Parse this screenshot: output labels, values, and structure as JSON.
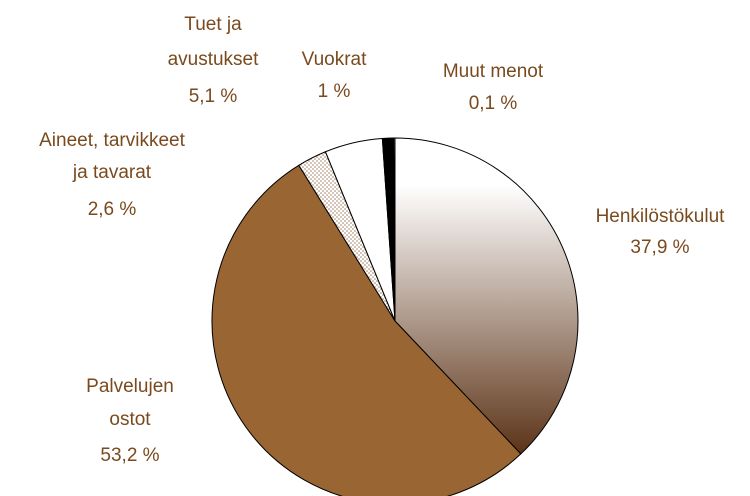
{
  "chart_data": {
    "type": "pie",
    "categories": [
      [
        "Henkilöstökulut"
      ],
      [
        "Palvelujen",
        "ostot"
      ],
      [
        "Aineet, tarvikkeet",
        "ja tavarat"
      ],
      [
        "Tuet ja",
        "avustukset"
      ],
      [
        "Vuokrat"
      ],
      [
        "Muut menot"
      ]
    ],
    "values": [
      37.9,
      53.2,
      2.6,
      5.1,
      1,
      0.1
    ],
    "value_labels": [
      "37,9 %",
      "53,2 %",
      "2,6 %",
      "5,1 %",
      "1 %",
      "0,1 %"
    ],
    "colors": [
      "#5c3317",
      "#996633",
      "#a08060",
      "#ffffff",
      "#000000",
      "#ffffff"
    ]
  }
}
